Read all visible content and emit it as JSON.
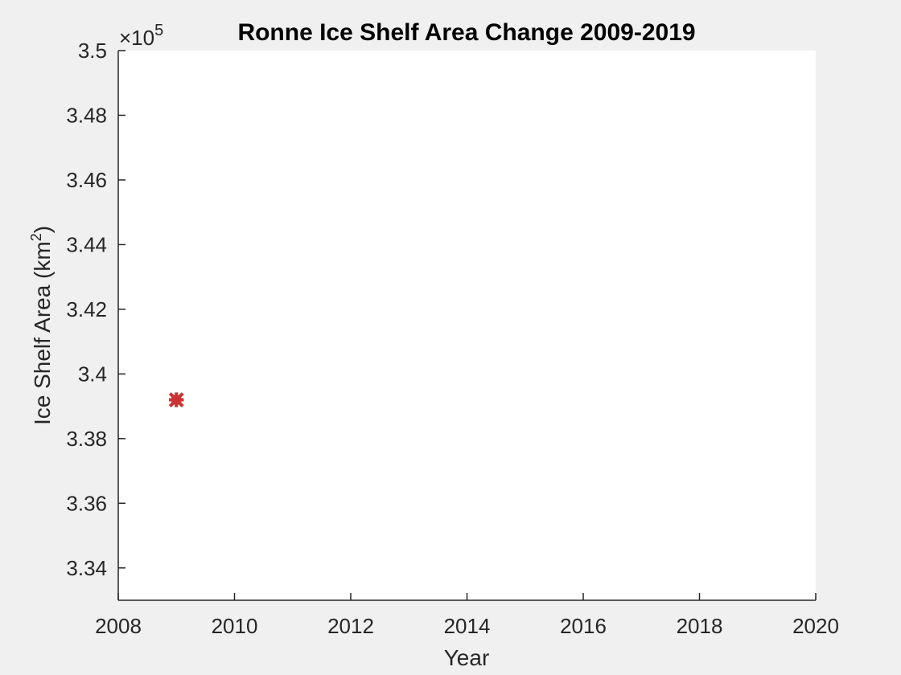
{
  "chart_data": {
    "type": "scatter",
    "title": "Ronne Ice Shelf Area Change 2009-2019",
    "xlabel": "Year",
    "ylabel_prefix": "Ice Shelf Area (km",
    "ylabel_sup": "2",
    "ylabel_suffix": ")",
    "y_exponent_base": "×10",
    "y_exponent_power": "5",
    "xlim": [
      2008,
      2020
    ],
    "ylim": [
      333000,
      350000
    ],
    "x_ticks": [
      2008,
      2010,
      2012,
      2014,
      2016,
      2018,
      2020
    ],
    "x_tick_labels": [
      "2008",
      "2010",
      "2012",
      "2014",
      "2016",
      "2018",
      "2020"
    ],
    "y_ticks": [
      334000,
      336000,
      338000,
      340000,
      342000,
      344000,
      346000,
      348000,
      350000
    ],
    "y_tick_labels": [
      "3.34",
      "3.36",
      "3.38",
      "3.4",
      "3.42",
      "3.44",
      "3.46",
      "3.48",
      "3.5"
    ],
    "grid": false,
    "legend": "none",
    "series": [
      {
        "color": "#cc3333",
        "marker": "x",
        "x": [
          2009
        ],
        "y": [
          339200
        ]
      }
    ]
  },
  "colors": {
    "figure_bg": "#f0f0f0",
    "axes_bg": "#ffffff",
    "axis_color": "#262626"
  }
}
